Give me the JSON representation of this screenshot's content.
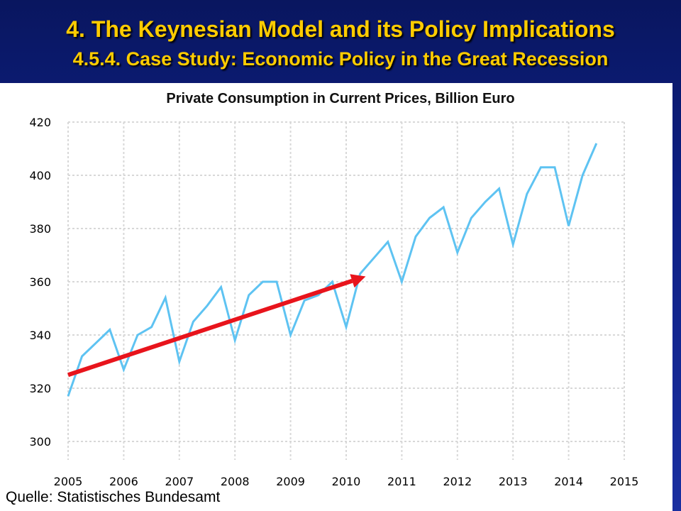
{
  "slide": {
    "title": "4. The Keynesian Model and its Policy Implications",
    "subtitle": "4.5.4. Case Study: Economic Policy in the Great Recession",
    "source": "Quelle: Statistisches Bundesamt"
  },
  "chart_data": {
    "type": "line",
    "title": "Private Consumption in Current Prices, Billion Euro",
    "xlabel": "",
    "ylabel": "",
    "xlim": [
      2005,
      2015
    ],
    "ylim": [
      300,
      420
    ],
    "x_ticks": [
      "2005",
      "2006",
      "2007",
      "2008",
      "2009",
      "2010",
      "2011",
      "2012",
      "2013",
      "2014",
      "2015"
    ],
    "y_ticks": [
      "300",
      "320",
      "340",
      "360",
      "380",
      "400",
      "420"
    ],
    "grid": true,
    "legend": "none",
    "series": [
      {
        "color": "#5ec3f2",
        "x": [
          2005.0,
          2005.25,
          2005.5,
          2005.75,
          2006.0,
          2006.25,
          2006.5,
          2006.75,
          2007.0,
          2007.25,
          2007.5,
          2007.75,
          2008.0,
          2008.25,
          2008.5,
          2008.75,
          2009.0,
          2009.25,
          2009.5,
          2009.75,
          2010.0,
          2010.25,
          2010.5,
          2010.75,
          2011.0,
          2011.25,
          2011.5,
          2011.75,
          2012.0,
          2012.25,
          2012.5,
          2012.75,
          2013.0,
          2013.25,
          2013.5,
          2013.75,
          2014.0,
          2014.25,
          2014.5
        ],
        "values": [
          317,
          332,
          337,
          342,
          327,
          340,
          343,
          354,
          330,
          345,
          351,
          358,
          338,
          355,
          360,
          360,
          340,
          353,
          355,
          360,
          343,
          363,
          369,
          375,
          360,
          377,
          384,
          388,
          371,
          384,
          390,
          395,
          374,
          393,
          403,
          403,
          381,
          400,
          412
        ]
      }
    ],
    "annotations": [
      {
        "type": "trend-arrow",
        "color": "#e8141c",
        "from": [
          2005.0,
          325
        ],
        "to": [
          2010.35,
          362
        ]
      }
    ]
  }
}
